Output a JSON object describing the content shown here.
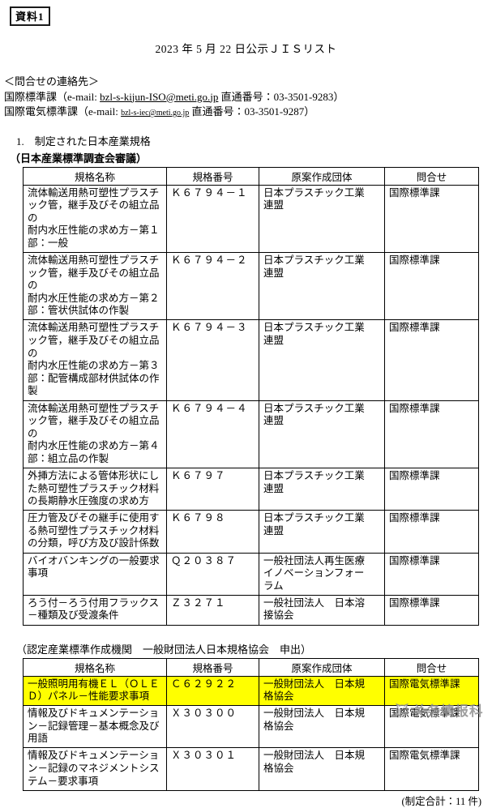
{
  "colors": {
    "highlight": "#ffff00",
    "watermark": "#8f8f8f"
  },
  "doc": {
    "tag": "資料1",
    "title": "2023 年 5 月 22 日公示ＪＩＳリスト"
  },
  "contact": {
    "heading": "＜問合せの連絡先＞",
    "entries": [
      {
        "dept": "国際標準課",
        "open": "（e-mail: ",
        "email": "bzl-s-kijun-ISO@meti.go.jp",
        "mid": " 直通番号：",
        "phone": "03-3501-9283",
        "close": "）"
      },
      {
        "dept": "国際電気標準課",
        "open": "（e-mail: ",
        "email": "bzl-s-iec@meti.go.jp",
        "mid": " 直通番号：",
        "phone": "03-3501-9287",
        "close": "）"
      }
    ]
  },
  "section1": {
    "heading": "1.　制定された日本産業規格",
    "subheading": "（日本産業標準調査会審議）",
    "table": {
      "headers": [
        "規格名称",
        "規格番号",
        "原案作成団体",
        "問合せ"
      ],
      "rows": [
        {
          "highlight": false,
          "cells": [
            "流体輸送用熱可塑性プラスチ\nック管，継手及びその組立品の\n耐内水圧性能の求め方－第１\n部：一般",
            "Ｋ６７９４－１",
            "日本プラスチック工業\n連盟",
            "国際標準課"
          ]
        },
        {
          "highlight": false,
          "cells": [
            "流体輸送用熱可塑性プラスチ\nック管，継手及びその組立品の\n耐内水圧性能の求め方－第２\n部：管状供試体の作製",
            "Ｋ６７９４－２",
            "日本プラスチック工業\n連盟",
            "国際標準課"
          ]
        },
        {
          "highlight": false,
          "cells": [
            "流体輸送用熱可塑性プラスチ\nック管，継手及びその組立品の\n耐内水圧性能の求め方－第３\n部：配管構成部材供試体の作製",
            "Ｋ６７９４－３",
            "日本プラスチック工業\n連盟",
            "国際標準課"
          ]
        },
        {
          "highlight": false,
          "cells": [
            "流体輸送用熱可塑性プラスチ\nック管，継手及びその組立品の\n耐内水圧性能の求め方－第４\n部：組立品の作製",
            "Ｋ６７９４－４",
            "日本プラスチック工業\n連盟",
            "国際標準課"
          ]
        },
        {
          "highlight": false,
          "cells": [
            "外挿方法による管体形状にし\nた熱可塑性プラスチック材料\nの長期静水圧強度の求め方",
            "Ｋ６７９７",
            "日本プラスチック工業\n連盟",
            "国際標準課"
          ]
        },
        {
          "highlight": false,
          "cells": [
            "圧力管及びその継手に使用す\nる熱可塑性プラスチック材料\nの分類，呼び方及び設計係数",
            "Ｋ６７９８",
            "日本プラスチック工業\n連盟",
            "国際標準課"
          ]
        },
        {
          "highlight": false,
          "cells": [
            "バイオバンキングの一般要求\n事項",
            "Ｑ２０３８７",
            "一般社団法人再生医療\nイノベーションフォー\nラム",
            "国際標準課"
          ]
        },
        {
          "highlight": false,
          "cells": [
            "ろう付－ろう付用フラックス\n－種類及び受渡条件",
            "Ｚ３２７１",
            "一般社団法人　日本溶\n接協会",
            "国際標準課"
          ]
        }
      ]
    }
  },
  "section2": {
    "heading": "（認定産業標準作成機関　一般財団法人日本規格協会　申出）",
    "table": {
      "headers": [
        "規格名称",
        "規格番号",
        "原案作成団体",
        "問合せ"
      ],
      "rows": [
        {
          "highlight": true,
          "cells": [
            "一般照明用有機ＥＬ（ＯＬＥ\nＤ）パネル－性能要求事項",
            "Ｃ６２９２２",
            "一般財団法人　日本規\n格協会",
            "国際電気標準課"
          ]
        },
        {
          "highlight": false,
          "cells": [
            "情報及びドキュメンテーショ\nン－記録管理－基本概念及び\n用語",
            "Ｘ３０３００",
            "一般財団法人　日本規\n格協会",
            "国際電気標準課"
          ]
        },
        {
          "highlight": false,
          "cells": [
            "情報及びドキュメンテーショ\nン－記録のマネジメントシス\nテム－要求事項",
            "Ｘ３０３０１",
            "一般財団法人　日本規\n格協会",
            "国際電気標準課"
          ]
        }
      ]
    }
  },
  "footer": {
    "total": "(制定合計：11 件)",
    "watermark": "关务情报科"
  }
}
